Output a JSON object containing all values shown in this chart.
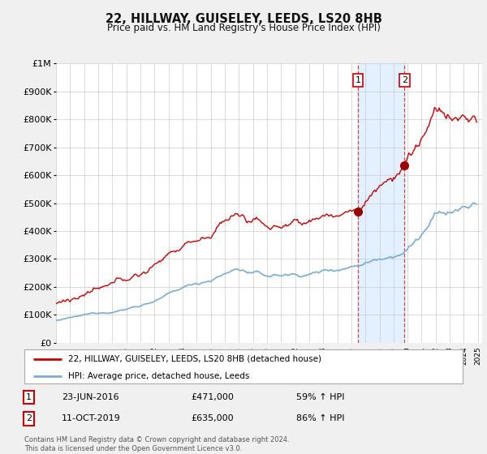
{
  "title": "22, HILLWAY, GUISELEY, LEEDS, LS20 8HB",
  "subtitle": "Price paid vs. HM Land Registry's House Price Index (HPI)",
  "sale1_date": "23-JUN-2016",
  "sale1_price": 471000,
  "sale1_hpi": "59% ↑ HPI",
  "sale2_date": "11-OCT-2019",
  "sale2_price": 635000,
  "sale2_hpi": "86% ↑ HPI",
  "legend_line1": "22, HILLWAY, GUISELEY, LEEDS, LS20 8HB (detached house)",
  "legend_line2": "HPI: Average price, detached house, Leeds",
  "footer": "Contains HM Land Registry data © Crown copyright and database right 2024.\nThis data is licensed under the Open Government Licence v3.0.",
  "hpi_color": "#7aadd4",
  "price_color": "#cc0000",
  "sale_marker_color": "#990000",
  "vline_color": "#dd4444",
  "shade_color": "#ddeeff",
  "ylim": [
    0,
    1000000
  ],
  "yticks": [
    0,
    100000,
    200000,
    300000,
    400000,
    500000,
    600000,
    700000,
    800000,
    900000,
    1000000
  ],
  "ylabel_map": {
    "0": "£0",
    "100000": "£100K",
    "200000": "£200K",
    "300000": "£300K",
    "400000": "£400K",
    "500000": "£500K",
    "600000": "£600K",
    "700000": "£700K",
    "800000": "£800K",
    "900000": "£900K",
    "1000000": "£1M"
  },
  "sale1_x": 2016.48,
  "sale2_x": 2019.78,
  "background_color": "#f0f0f0",
  "plot_bg": "#ffffff",
  "grid_color": "#cccccc"
}
